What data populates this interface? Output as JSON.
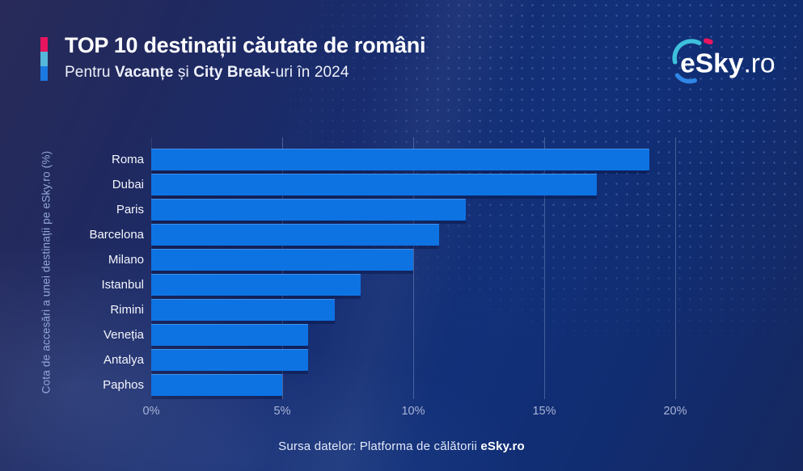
{
  "header": {
    "title": "TOP 10 destinații căutate de români",
    "subtitle_parts": [
      {
        "text": "Pentru "
      },
      {
        "text": "Vacanțe"
      },
      {
        "text": " și "
      },
      {
        "text": "City Break"
      },
      {
        "text": "-uri în 2024"
      }
    ],
    "accent_colors": [
      "#e8155e",
      "#55b7d9",
      "#1b79e2"
    ]
  },
  "logo": {
    "text_main": "eSky",
    "text_suffix": ".ro",
    "arc_cyan": "#3ec0dc",
    "arc_blue": "#2f86e6",
    "dot_pink": "#e8155e"
  },
  "chart_data": {
    "type": "bar",
    "orientation": "horizontal",
    "title": "TOP 10 destinații căutate de români — Pentru Vacanțe și City Break-uri în 2024",
    "categories": [
      "Roma",
      "Dubai",
      "Paris",
      "Barcelona",
      "Milano",
      "Istanbul",
      "Rimini",
      "Veneția",
      "Antalya",
      "Paphos"
    ],
    "values": [
      19,
      17,
      12,
      11,
      10,
      8,
      7,
      6,
      6,
      5
    ],
    "unit": "%",
    "axis_max": 20,
    "x_ticks": [
      "0%",
      "5%",
      "10%",
      "15%",
      "20%"
    ],
    "ylabel": "Cota de accesări a unei destinații pe eSky.ro (%)",
    "bar_color": "#0d73e3",
    "grid": true,
    "legend": "none"
  },
  "footer": {
    "source_prefix": "Sursa datelor: Platforma de călătorii ",
    "source_brand": "eSky.ro"
  }
}
